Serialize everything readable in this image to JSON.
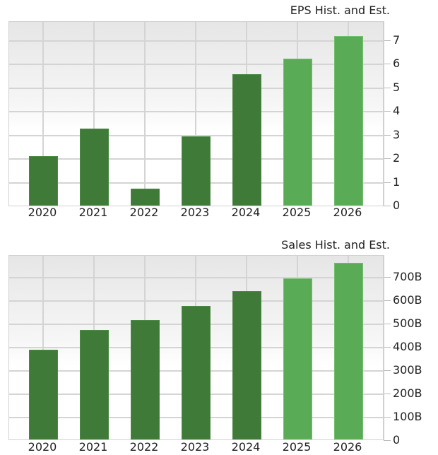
{
  "chart_data": [
    {
      "type": "bar",
      "title": "EPS Hist. and Est.",
      "xlabel": "",
      "ylabel": "",
      "categories": [
        "2020",
        "2021",
        "2022",
        "2023",
        "2024",
        "2025",
        "2026"
      ],
      "series": [
        {
          "name": "Historical",
          "color": "#3f7a39",
          "values": [
            2.1,
            3.26,
            0.72,
            2.92,
            5.54,
            null,
            null
          ]
        },
        {
          "name": "Estimate",
          "color": "#5aab55",
          "values": [
            null,
            null,
            null,
            null,
            null,
            6.22,
            7.16
          ]
        }
      ],
      "values": [
        2.1,
        3.26,
        0.72,
        2.92,
        5.54,
        6.22,
        7.16
      ],
      "ylim": [
        0,
        7.7
      ],
      "yticks": [
        0,
        1,
        2,
        3,
        4,
        5,
        6,
        7
      ],
      "ytick_labels": [
        "0",
        "1",
        "2",
        "3",
        "4",
        "5",
        "6",
        "7"
      ],
      "grid": true,
      "yaxis_position": "right",
      "legend": "none"
    },
    {
      "type": "bar",
      "title": "Sales Hist. and Est.",
      "xlabel": "",
      "ylabel": "",
      "categories": [
        "2020",
        "2021",
        "2022",
        "2023",
        "2024",
        "2025",
        "2026"
      ],
      "series": [
        {
          "name": "Historical",
          "color": "#3f7a39",
          "values": [
            386,
            469,
            514,
            575,
            638,
            691,
            759
          ]
        }
      ],
      "series_estimate_flags": [
        false,
        false,
        false,
        false,
        false,
        true,
        true
      ],
      "values": [
        386,
        469,
        514,
        575,
        638,
        691,
        759
      ],
      "units": "B",
      "ylim": [
        0,
        790
      ],
      "yticks": [
        0,
        100,
        200,
        300,
        400,
        500,
        600,
        700
      ],
      "ytick_labels": [
        "0",
        "100B",
        "200B",
        "300B",
        "400B",
        "500B",
        "600B",
        "700B"
      ],
      "grid": true,
      "yaxis_position": "right",
      "legend": "none"
    }
  ]
}
